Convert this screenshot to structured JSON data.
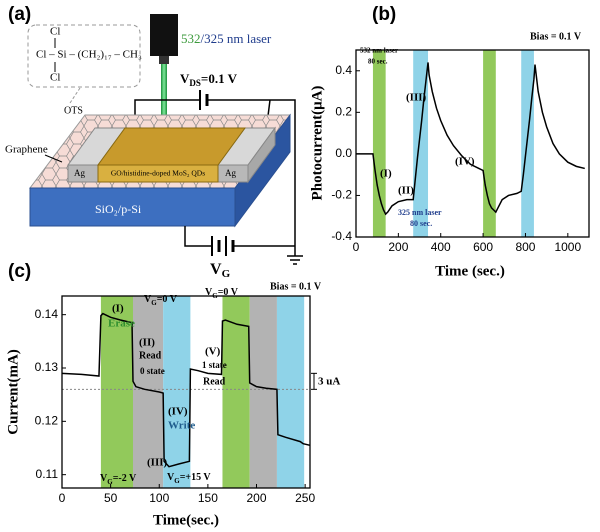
{
  "schematic": {
    "label": "(a)",
    "laser_wavelength_1": "532",
    "laser_wavelength_rest": "/325 nm laser",
    "formula": [
      "Cl",
      "Cl – Si – (CH₂)₁₇ – CH₃",
      "Cl"
    ],
    "ots": "OTS",
    "vds": {
      "main": "V",
      "sub": "DS",
      "rest": "=0.1 V"
    },
    "graphene": "Graphene",
    "ag_left": "Ag",
    "ag_right": "Ag",
    "channel": "GO/histidine-doped MoS₂ QDs",
    "substrate": "SiO₂/p-Si",
    "vg": {
      "main": "V",
      "sub": "G"
    }
  },
  "chart_data": [
    {
      "type": "line",
      "label": "(b)",
      "xlabel": "Time (sec.)",
      "ylabel": "Photocurrent(μA)",
      "xlim": [
        0,
        1100
      ],
      "ylim": [
        -0.4,
        0.5
      ],
      "xticks": [
        0,
        200,
        400,
        600,
        800,
        1000
      ],
      "yticks": [
        -0.4,
        -0.2,
        {
          "value": 0,
          "label": "0.0"
        },
        0.2,
        0.4
      ],
      "color": "#000000",
      "x": [
        0,
        40,
        80,
        90,
        100,
        110,
        120,
        130,
        140,
        150,
        170,
        200,
        240,
        270,
        280,
        290,
        300,
        310,
        320,
        330,
        340,
        345,
        360,
        380,
        400,
        430,
        460,
        500,
        540,
        580,
        600,
        610,
        620,
        630,
        640,
        650,
        660,
        670,
        690,
        720,
        760,
        780,
        790,
        800,
        810,
        820,
        830,
        840,
        845,
        860,
        880,
        900,
        930,
        960,
        1000,
        1040,
        1080
      ],
      "values": [
        0,
        0,
        0,
        -0.08,
        -0.15,
        -0.2,
        -0.24,
        -0.27,
        -0.29,
        -0.28,
        -0.25,
        -0.23,
        -0.22,
        -0.22,
        -0.12,
        -0.02,
        0.07,
        0.16,
        0.26,
        0.35,
        0.44,
        0.38,
        0.3,
        0.22,
        0.16,
        0.09,
        0.04,
        -0.01,
        -0.05,
        -0.07,
        -0.08,
        -0.15,
        -0.2,
        -0.24,
        -0.26,
        -0.27,
        -0.28,
        -0.26,
        -0.22,
        -0.2,
        -0.19,
        -0.18,
        -0.1,
        -0.01,
        0.08,
        0.17,
        0.27,
        0.36,
        0.43,
        0.3,
        0.2,
        0.13,
        0.05,
        0.0,
        -0.04,
        -0.06,
        -0.07
      ],
      "bands": [
        {
          "x": [
            80,
            140
          ],
          "color": "#92c95b"
        },
        {
          "x": [
            270,
            340
          ],
          "color": "#8fd3e8"
        },
        {
          "x": [
            600,
            660
          ],
          "color": "#92c95b"
        },
        {
          "x": [
            780,
            840
          ],
          "color": "#8fd3e8"
        }
      ],
      "annotations": [
        "532 nm laser",
        "80 sec.",
        "(I)",
        "(II)",
        "(III)",
        "(IV)",
        "325 nm laser",
        "80 sec.",
        "Bias = 0.1 V"
      ]
    },
    {
      "type": "line",
      "label": "(c)",
      "xlabel": "Time(sec.)",
      "ylabel": "Current(mA)",
      "xlim": [
        0,
        255
      ],
      "ylim": [
        0.1075,
        0.1435
      ],
      "xticks": [
        0,
        50,
        100,
        150,
        200,
        250
      ],
      "yticks": [
        0.11,
        0.12,
        0.13,
        0.14
      ],
      "color": "#000000",
      "x": [
        0,
        20,
        38,
        40,
        42,
        50,
        60,
        72,
        73,
        76,
        85,
        100,
        104,
        105,
        110,
        120,
        131,
        132,
        140,
        150,
        164,
        165,
        168,
        180,
        192,
        193,
        200,
        210,
        221,
        222,
        230,
        245,
        248,
        255
      ],
      "values": [
        0.129,
        0.1288,
        0.1285,
        0.1398,
        0.1402,
        0.1395,
        0.139,
        0.1385,
        0.1275,
        0.1265,
        0.126,
        0.1255,
        0.1253,
        0.1125,
        0.1115,
        0.112,
        0.1125,
        0.1298,
        0.1295,
        0.129,
        0.1288,
        0.1388,
        0.139,
        0.1382,
        0.1378,
        0.1272,
        0.1265,
        0.1262,
        0.126,
        0.1175,
        0.117,
        0.1162,
        0.1158,
        0.1155
      ],
      "bands": [
        {
          "x": [
            40,
            73
          ],
          "color": "#92c95b"
        },
        {
          "x": [
            73,
            104
          ],
          "color": "#b3b3b3"
        },
        {
          "x": [
            104,
            132
          ],
          "color": "#8fd3e8"
        },
        {
          "x": [
            165,
            193
          ],
          "color": "#92c95b"
        },
        {
          "x": [
            193,
            221
          ],
          "color": "#b3b3b3"
        },
        {
          "x": [
            221,
            249
          ],
          "color": "#8fd3e8"
        }
      ],
      "reference_line": 0.126,
      "bracket": [
        0.126,
        0.129
      ],
      "annotations": [
        "Bias = 0.1 V",
        "(I)",
        "Erase",
        {
          "main": "V",
          "sub": "G",
          "rest": "=0 V"
        },
        "(II)",
        "Read",
        "0 state",
        "(III)",
        {
          "main": "V",
          "sub": "G",
          "rest": "=+15 V"
        },
        "(IV)",
        "Write",
        {
          "main": "V",
          "sub": "G",
          "rest": "=-2 V"
        },
        {
          "main": "V",
          "sub": "G",
          "rest": "=0 V"
        },
        "(V)",
        "1 state",
        "Read",
        "3 uA"
      ]
    }
  ]
}
